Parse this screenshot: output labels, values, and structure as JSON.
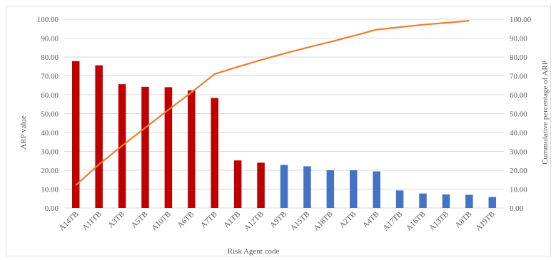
{
  "chart_data": {
    "type": "bar+line",
    "title": "",
    "xlabel": "Risk Agent code",
    "ylabel": "ARP value",
    "y2label": "Cummulative  percentage of ARP",
    "ylim": [
      0,
      100
    ],
    "y2lim": [
      0,
      100
    ],
    "ytick_step": 10,
    "ytick_labels": [
      "0.00",
      "10.00",
      "20.00",
      "30.00",
      "40.00",
      "50.00",
      "60.00",
      "70.00",
      "80.00",
      "90.00",
      "100.00"
    ],
    "y2tick_labels": [
      "0.00",
      "10.00",
      "20.00",
      "30.00",
      "40.00",
      "50.00",
      "60.00",
      "70.00",
      "80.00",
      "90.00",
      "100.00"
    ],
    "grid": true,
    "legend": "none",
    "categories": [
      "A14TB",
      "A11TB",
      "A3TB",
      "A5TB",
      "A10TB",
      "A6TB",
      "A7TB",
      "A1TB",
      "A12TB",
      "A9TB",
      "A15TB",
      "A18TB",
      "A2TB",
      "A4TB",
      "A17TB",
      "A16TB",
      "A13TB",
      "A8TB",
      "A19TB"
    ],
    "series": [
      {
        "kind": "bar",
        "axis": "left",
        "values": [
          77.8,
          75.6,
          65.6,
          64.2,
          64.0,
          62.3,
          58.3,
          25.2,
          24.0,
          22.8,
          22.1,
          20.0,
          20.0,
          19.4,
          9.3,
          7.7,
          7.2,
          7.0,
          5.8
        ],
        "colors": [
          "#c00000",
          "#c00000",
          "#c00000",
          "#c00000",
          "#c00000",
          "#c00000",
          "#c00000",
          "#c00000",
          "#c00000",
          "#4472c4",
          "#4472c4",
          "#4472c4",
          "#4472c4",
          "#4472c4",
          "#4472c4",
          "#4472c4",
          "#4472c4",
          "#4472c4",
          "#4472c4"
        ]
      },
      {
        "kind": "line",
        "axis": "right",
        "color": "#ed7d31",
        "values": [
          12.0,
          23.1,
          33.0,
          42.5,
          52.0,
          61.3,
          71.0,
          74.8,
          78.4,
          81.8,
          85.0,
          88.0,
          91.2,
          94.5,
          95.8,
          97.1,
          98.1,
          99.2,
          null
        ]
      }
    ]
  }
}
